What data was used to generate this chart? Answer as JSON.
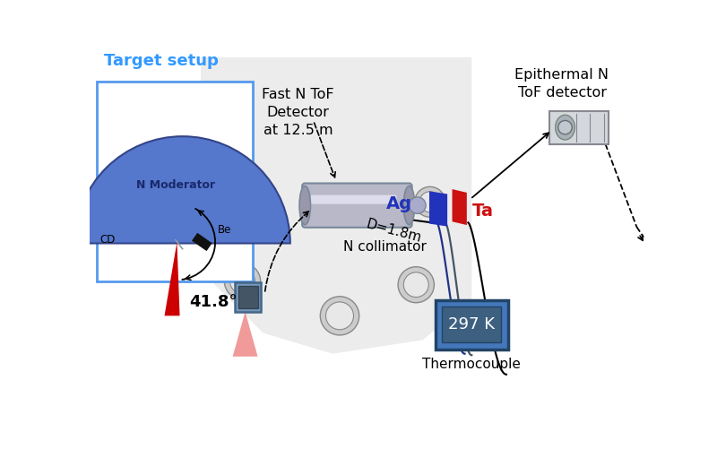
{
  "bg_color": "#ffffff",
  "title_text": "Target setup",
  "title_color": "#3399ff",
  "moderator_color": "#5577cc",
  "moderator_text": "N Moderator",
  "moderator_text_color": "#1a2a6c",
  "be_color": "#111111",
  "be_label": "Be",
  "cd_label": "CD",
  "red_beam_color": "#cc0000",
  "angle_label": "41.8°",
  "fast_detector_label": "Fast N ToF\nDetector\nat 12.5 m",
  "epithermal_label": "Epithermal N\nToF detector",
  "collimator_label": "N collimator",
  "ag_label": "Ag",
  "ag_color": "#2233bb",
  "ta_label": "Ta",
  "ta_color": "#cc1111",
  "thermocouple_label": "Thermocouple",
  "temp_label": "297 K",
  "temp_box_outer": "#4477bb",
  "temp_box_inner": "#3d6080",
  "temp_text_color": "#ffffff",
  "dist_label": "D=1.8m",
  "inset_box_color": "#5599ee",
  "wire_color1": "#223388",
  "wire_color2": "#556677"
}
